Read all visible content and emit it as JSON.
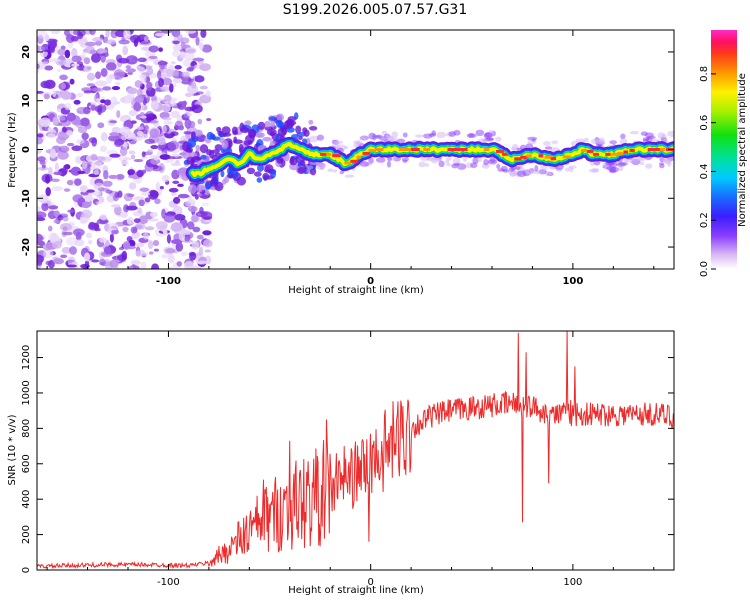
{
  "title": "S199.2026.005.07.57.G31",
  "colors": {
    "snr_line": "#ee2b2b",
    "axis": "#000000",
    "spectrogram_scatter": "#7a3cf0",
    "ridge_core": "#ff2a2a"
  },
  "chart_data": [
    {
      "type": "heatmap",
      "name": "spectrogram",
      "xlabel": "Height of straight line (km)",
      "ylabel": "Frequency (Hz)",
      "xlim": [
        -165,
        150
      ],
      "ylim": [
        -24.5,
        24.5
      ],
      "x_ticks": [
        -100,
        0,
        100
      ],
      "x_tick_labels": [
        "-100",
        "0",
        "100"
      ],
      "y_ticks": [
        -20,
        -10,
        0,
        10,
        20
      ],
      "y_tick_labels": [
        "-20",
        "-10",
        "0",
        "10",
        "20"
      ],
      "ridge": {
        "x": [
          -85,
          -80,
          -75,
          -70,
          -65,
          -60,
          -55,
          -50,
          -45,
          -40,
          -35,
          -30,
          -20,
          -12,
          -5,
          0,
          20,
          40,
          60,
          65,
          70,
          80,
          90,
          100,
          105,
          110,
          120,
          130,
          150
        ],
        "y": [
          -5,
          -4,
          -3,
          -2,
          -3,
          -1,
          -2,
          -1,
          0,
          1,
          0,
          -1,
          -1,
          -3,
          -1,
          0,
          0,
          0,
          0,
          -1,
          -2,
          -1,
          -2,
          -1,
          0,
          -1,
          -1,
          0,
          0
        ]
      },
      "colorbar": {
        "label": "Normalized spectral amplitude",
        "ticks": [
          0.0,
          0.2,
          0.4,
          0.6,
          0.8
        ],
        "tick_labels": [
          "0.0",
          "0.2",
          "0.4",
          "0.6",
          "0.8"
        ],
        "range": [
          0,
          0.98
        ]
      }
    },
    {
      "type": "line",
      "name": "snr",
      "xlabel": "Height of straight line (km)",
      "ylabel": "SNR (10 * v/v)",
      "xlim": [
        -165,
        150
      ],
      "ylim": [
        0,
        1350
      ],
      "x_ticks": [
        -100,
        0,
        100
      ],
      "x_tick_labels": [
        "-100",
        "0",
        "100"
      ],
      "y_ticks": [
        0,
        200,
        400,
        600,
        800,
        1000,
        1200
      ],
      "y_tick_labels": [
        "0",
        "200",
        "400",
        "600",
        "800",
        "1000",
        "1200"
      ],
      "envelope": {
        "x": [
          -165,
          -150,
          -130,
          -110,
          -90,
          -80,
          -70,
          -60,
          -50,
          -40,
          -30,
          -20,
          -10,
          0,
          10,
          20,
          30,
          40,
          60,
          70,
          80,
          90,
          100,
          110,
          120,
          130,
          140,
          150
        ],
        "y": [
          20,
          25,
          30,
          30,
          25,
          40,
          120,
          220,
          300,
          360,
          400,
          450,
          520,
          600,
          700,
          800,
          870,
          900,
          930,
          940,
          920,
          880,
          880,
          880,
          880,
          880,
          880,
          870
        ]
      },
      "spikes": {
        "x": [
          -53,
          -40,
          -22,
          -17,
          -13,
          -1,
          2,
          73,
          75,
          77,
          80,
          88,
          97,
          99,
          101
        ],
        "y": [
          510,
          730,
          850,
          660,
          700,
          160,
          560,
          1340,
          270,
          1230,
          890,
          490,
          1350,
          960,
          1150
        ]
      }
    }
  ]
}
